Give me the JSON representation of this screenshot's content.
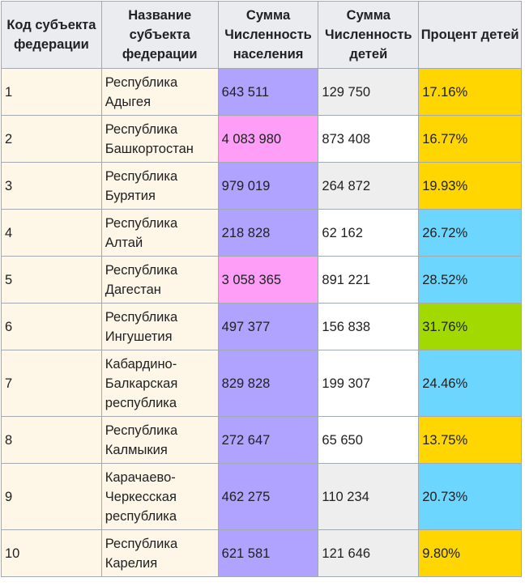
{
  "table": {
    "headers": [
      "Код субъекта федерации",
      "Название субъекта федерации",
      "Сумма Численность населения",
      "Сумма Численность детей",
      "Процент детей"
    ],
    "rows": [
      {
        "code": "1",
        "name": "Республика Адыгея",
        "population": "643 511",
        "children": "129 750",
        "percent": "17.16%",
        "pop_color": "#b0a3ff",
        "kids_color": "#eeeeee",
        "pct_color": "#ffd600"
      },
      {
        "code": "2",
        "name": "Республика Башкортостан",
        "population": "4 083 980",
        "children": "873 408",
        "percent": "16.77%",
        "pop_color": "#ff9ef7",
        "kids_color": "#ffffff",
        "pct_color": "#ffd600"
      },
      {
        "code": "3",
        "name": "Республика Бурятия",
        "population": "979 019",
        "children": "264 872",
        "percent": "19.93%",
        "pop_color": "#b0a3ff",
        "kids_color": "#eeeeee",
        "pct_color": "#ffd600"
      },
      {
        "code": "4",
        "name": "Республика Алтай",
        "population": "218 828",
        "children": "62 162",
        "percent": "26.72%",
        "pop_color": "#b0a3ff",
        "kids_color": "#ffffff",
        "pct_color": "#6dd6ff"
      },
      {
        "code": "5",
        "name": "Республика Дагестан",
        "population": "3 058 365",
        "children": "891 221",
        "percent": "28.52%",
        "pop_color": "#ff9ef7",
        "kids_color": "#ffffff",
        "pct_color": "#6dd6ff"
      },
      {
        "code": "6",
        "name": "Республика Ингушетия",
        "population": "497 377",
        "children": "156 838",
        "percent": "31.76%",
        "pop_color": "#b0a3ff",
        "kids_color": "#ffffff",
        "pct_color": "#a2d900"
      },
      {
        "code": "7",
        "name": "Кабардино-Балкарская республика",
        "population": "829 828",
        "children": "199 307",
        "percent": "24.46%",
        "pop_color": "#b0a3ff",
        "kids_color": "#ffffff",
        "pct_color": "#6dd6ff"
      },
      {
        "code": "8",
        "name": "Республика Калмыкия",
        "population": "272 647",
        "children": "65 650",
        "percent": "13.75%",
        "pop_color": "#b0a3ff",
        "kids_color": "#ffffff",
        "pct_color": "#ffd600"
      },
      {
        "code": "9",
        "name": "Карачаево-Черкесская республика",
        "population": "462 275",
        "children": "110 234",
        "percent": "20.73%",
        "pop_color": "#b0a3ff",
        "kids_color": "#eeeeee",
        "pct_color": "#6dd6ff"
      },
      {
        "code": "10",
        "name": "Республика Карелия",
        "population": "621 581",
        "children": "121 646",
        "percent": "9.80%",
        "pop_color": "#b0a3ff",
        "kids_color": "#eeeeee",
        "pct_color": "#ffd600"
      }
    ]
  }
}
